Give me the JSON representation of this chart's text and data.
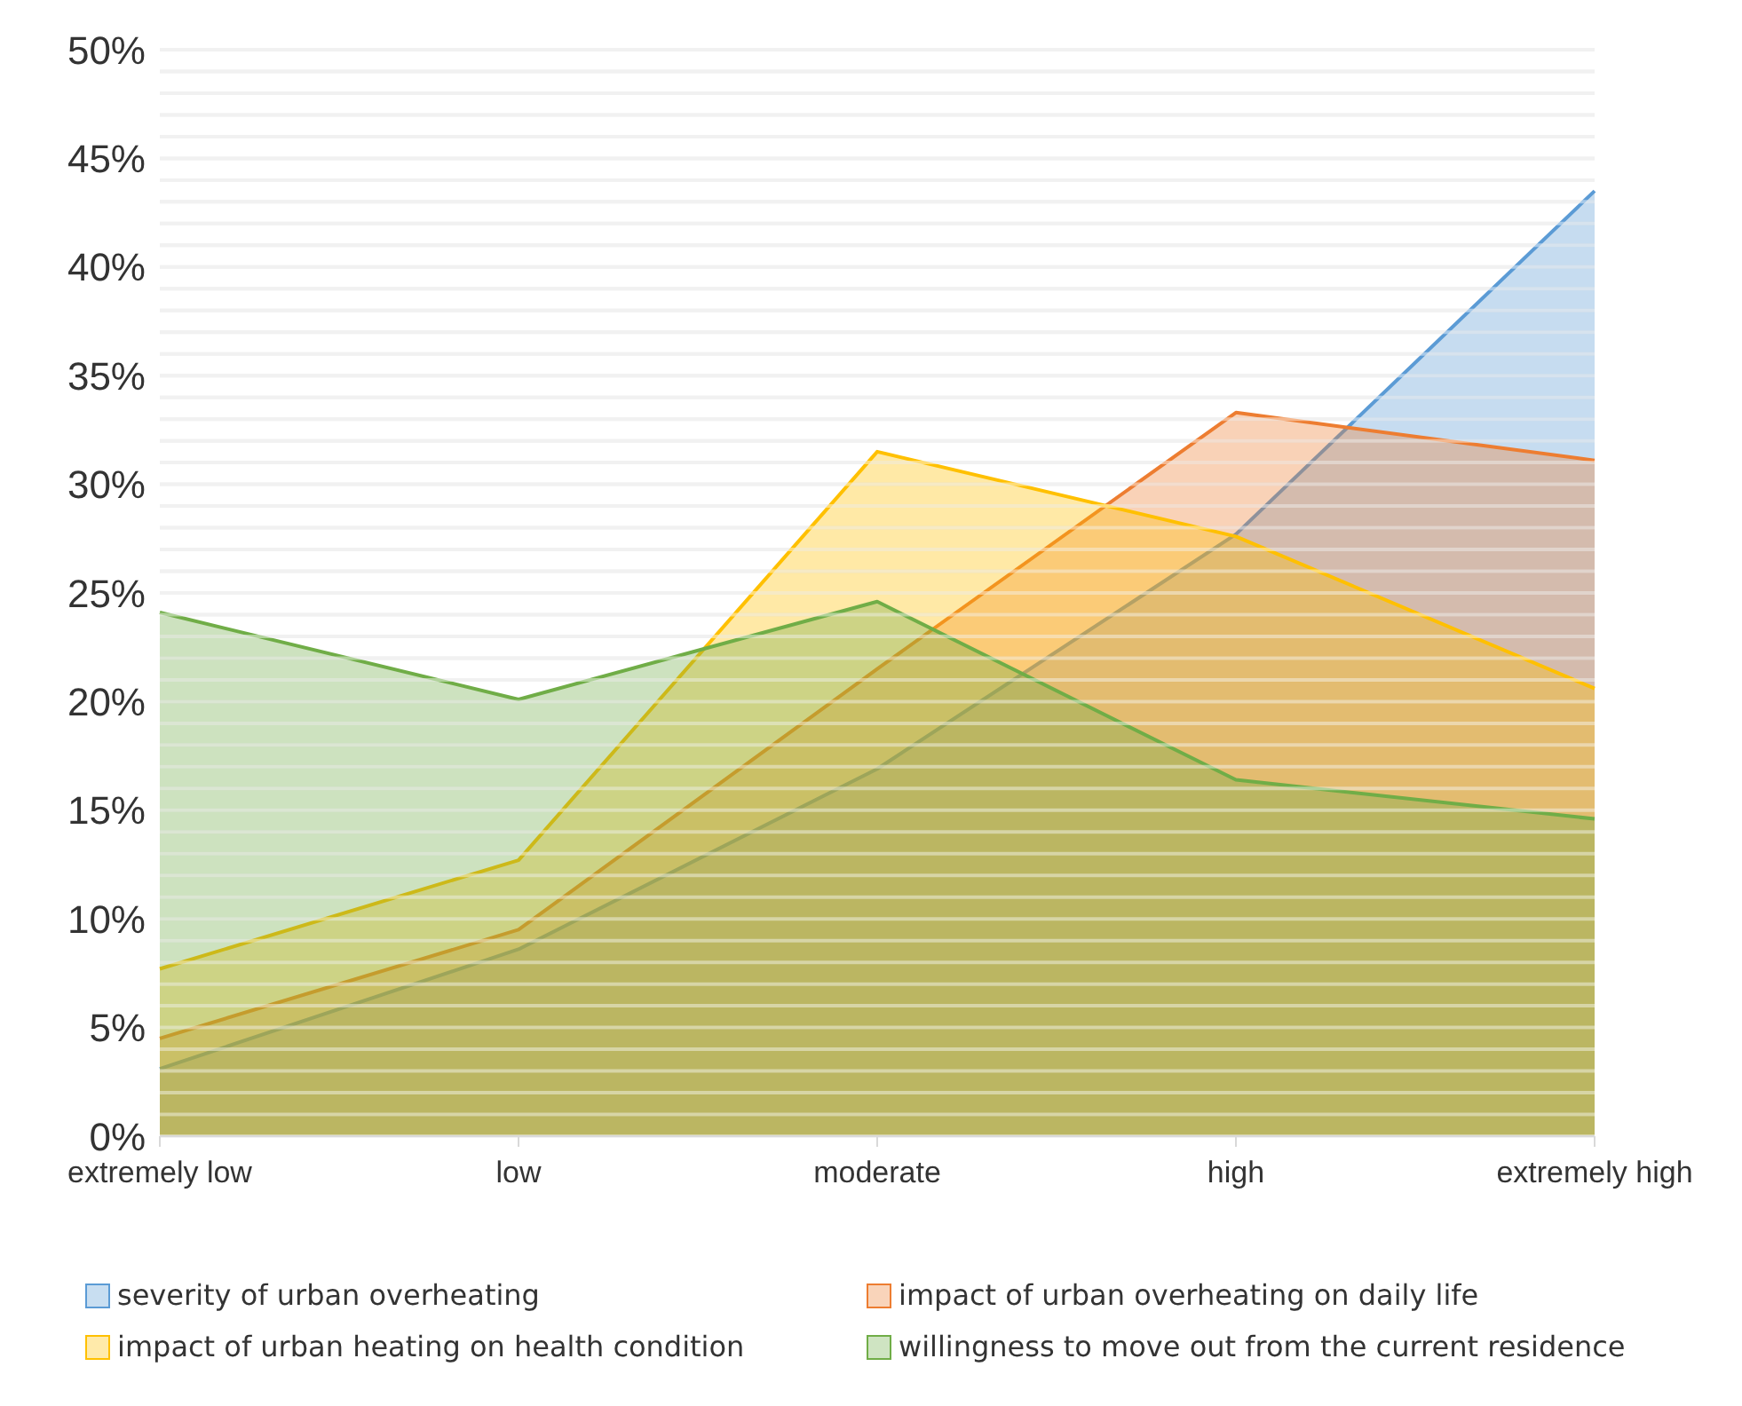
{
  "chart_data": {
    "type": "area",
    "categories": [
      "extremely low",
      "low",
      "moderate",
      "high",
      "extremely high"
    ],
    "series": [
      {
        "name": "severity of urban overheating",
        "color": "#5b9bd5",
        "values": [
          3.1,
          8.6,
          16.9,
          27.7,
          43.5
        ]
      },
      {
        "name": "impact of urban overheating on daily life",
        "color": "#ed7d31",
        "values": [
          4.5,
          9.5,
          21.5,
          33.3,
          31.1
        ]
      },
      {
        "name": "impact of urban heating on health condition",
        "color": "#ffc000",
        "values": [
          7.7,
          12.7,
          31.5,
          27.6,
          20.6
        ]
      },
      {
        "name": "willingness to move out from the current residence",
        "color": "#70ad47",
        "values": [
          24.1,
          20.1,
          24.6,
          16.4,
          14.6
        ]
      }
    ],
    "ylim": [
      0,
      50
    ],
    "yticks": [
      {
        "value": 0,
        "label": "0%"
      },
      {
        "value": 1,
        "label": null
      },
      {
        "value": 2,
        "label": null
      },
      {
        "value": 3,
        "label": null
      },
      {
        "value": 4,
        "label": null
      },
      {
        "value": 5,
        "label": "5%"
      },
      {
        "value": 6,
        "label": null
      },
      {
        "value": 7,
        "label": null
      },
      {
        "value": 8,
        "label": null
      },
      {
        "value": 9,
        "label": null
      },
      {
        "value": 10,
        "label": "10%"
      },
      {
        "value": 11,
        "label": null
      },
      {
        "value": 12,
        "label": null
      },
      {
        "value": 13,
        "label": null
      },
      {
        "value": 14,
        "label": null
      },
      {
        "value": 15,
        "label": "15%"
      },
      {
        "value": 16,
        "label": null
      },
      {
        "value": 17,
        "label": null
      },
      {
        "value": 18,
        "label": null
      },
      {
        "value": 19,
        "label": null
      },
      {
        "value": 20,
        "label": "20%"
      },
      {
        "value": 21,
        "label": null
      },
      {
        "value": 22,
        "label": null
      },
      {
        "value": 23,
        "label": null
      },
      {
        "value": 24,
        "label": null
      },
      {
        "value": 25,
        "label": "25%"
      },
      {
        "value": 26,
        "label": null
      },
      {
        "value": 27,
        "label": null
      },
      {
        "value": 28,
        "label": null
      },
      {
        "value": 29,
        "label": null
      },
      {
        "value": 30,
        "label": "30%"
      },
      {
        "value": 31,
        "label": null
      },
      {
        "value": 32,
        "label": null
      },
      {
        "value": 33,
        "label": null
      },
      {
        "value": 34,
        "label": null
      },
      {
        "value": 35,
        "label": "35%"
      },
      {
        "value": 36,
        "label": null
      },
      {
        "value": 37,
        "label": null
      },
      {
        "value": 38,
        "label": null
      },
      {
        "value": 39,
        "label": null
      },
      {
        "value": 40,
        "label": "40%"
      },
      {
        "value": 41,
        "label": null
      },
      {
        "value": 42,
        "label": null
      },
      {
        "value": 43,
        "label": null
      },
      {
        "value": 44,
        "label": null
      },
      {
        "value": 45,
        "label": "45%"
      },
      {
        "value": 46,
        "label": null
      },
      {
        "value": 47,
        "label": null
      },
      {
        "value": 48,
        "label": null
      },
      {
        "value": 49,
        "label": null
      },
      {
        "value": 50,
        "label": "50%"
      }
    ],
    "grid": "y",
    "legend": "bottom"
  }
}
